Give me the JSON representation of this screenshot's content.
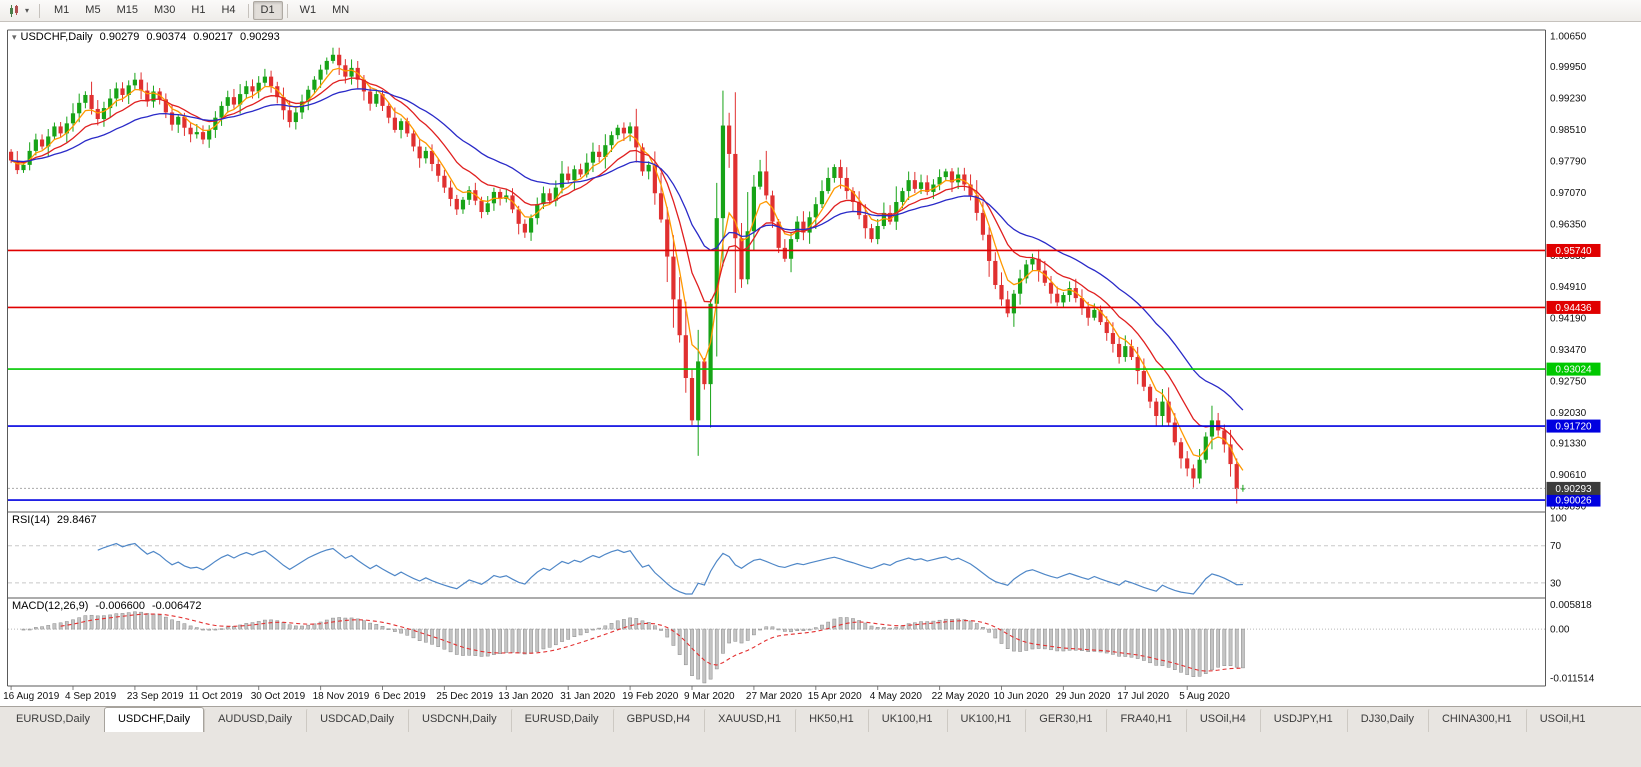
{
  "toolbar": {
    "timeframes": [
      "M1",
      "M5",
      "M15",
      "M30",
      "H1",
      "H4",
      "D1",
      "W1",
      "MN"
    ],
    "active_timeframe": "D1",
    "chart_menu_icon": "candlestick-chart-menu"
  },
  "chart": {
    "title": {
      "symbol": "USDCHF,Daily",
      "open": "0.90279",
      "high": "0.90374",
      "low": "0.90217",
      "close": "0.90293"
    }
  },
  "chart_data": {
    "type": "candlestick",
    "symbol": "USDCHF",
    "timeframe": "Daily",
    "title": "USDCHF,Daily 0.90279 0.90374 0.90217 0.90293",
    "x_labels": [
      "16 Aug 2019",
      "4 Sep 2019",
      "23 Sep 2019",
      "11 Oct 2019",
      "30 Oct 2019",
      "18 Nov 2019",
      "6 Dec 2019",
      "25 Dec 2019",
      "13 Jan 2020",
      "31 Jan 2020",
      "19 Feb 2020",
      "9 Mar 2020",
      "27 Mar 2020",
      "15 Apr 2020",
      "4 May 2020",
      "22 May 2020",
      "10 Jun 2020",
      "29 Jun 2020",
      "17 Jul 2020",
      "5 Aug 2020"
    ],
    "bars_per_label": 10,
    "first_open": 0.98,
    "closes": [
      0.978,
      0.9758,
      0.977,
      0.9802,
      0.9828,
      0.9812,
      0.9835,
      0.9858,
      0.9842,
      0.9865,
      0.9888,
      0.9912,
      0.993,
      0.9898,
      0.9875,
      0.99,
      0.9922,
      0.9945,
      0.993,
      0.9952,
      0.9965,
      0.994,
      0.9915,
      0.9938,
      0.992,
      0.989,
      0.9862,
      0.988,
      0.9855,
      0.984,
      0.9845,
      0.9828,
      0.985,
      0.9878,
      0.9905,
      0.9925,
      0.9908,
      0.9932,
      0.995,
      0.9938,
      0.9958,
      0.9972,
      0.995,
      0.9925,
      0.9895,
      0.9868,
      0.989,
      0.9915,
      0.9942,
      0.9965,
      0.9988,
      1.0008,
      1.0022,
      0.9998,
      0.9972,
      0.9992,
      0.9965,
      0.9938,
      0.991,
      0.9932,
      0.9905,
      0.9878,
      0.985,
      0.987,
      0.9842,
      0.9812,
      0.9785,
      0.9802,
      0.9772,
      0.9745,
      0.9718,
      0.9692,
      0.9668,
      0.969,
      0.9712,
      0.9688,
      0.9662,
      0.9682,
      0.9708,
      0.9692,
      0.97,
      0.9668,
      0.9635,
      0.9615,
      0.9648,
      0.968,
      0.9705,
      0.9688,
      0.9718,
      0.975,
      0.9735,
      0.976,
      0.9748,
      0.9775,
      0.98,
      0.9788,
      0.9815,
      0.9838,
      0.9855,
      0.9842,
      0.9858,
      0.981,
      0.9755,
      0.977,
      0.9705,
      0.9645,
      0.956,
      0.9462,
      0.938,
      0.9282,
      0.9185,
      0.932,
      0.9268,
      0.9452,
      0.9648,
      0.986,
      0.9795,
      0.9602,
      0.9508,
      0.9618,
      0.972,
      0.9755,
      0.97,
      0.964,
      0.958,
      0.9555,
      0.96,
      0.964,
      0.9615,
      0.965,
      0.968,
      0.971,
      0.974,
      0.9765,
      0.974,
      0.971,
      0.9685,
      0.9655,
      0.9625,
      0.96,
      0.963,
      0.966,
      0.964,
      0.9685,
      0.971,
      0.9735,
      0.9715,
      0.973,
      0.9708,
      0.9725,
      0.9742,
      0.9755,
      0.973,
      0.9748,
      0.9725,
      0.97,
      0.966,
      0.961,
      0.955,
      0.9495,
      0.9462,
      0.943,
      0.9475,
      0.951,
      0.9542,
      0.9555,
      0.9528,
      0.95,
      0.9475,
      0.9455,
      0.9472,
      0.9488,
      0.9465,
      0.9442,
      0.942,
      0.9438,
      0.941,
      0.9385,
      0.936,
      0.933,
      0.9355,
      0.933,
      0.9298,
      0.9262,
      0.9228,
      0.9195,
      0.9228,
      0.918,
      0.9135,
      0.9098,
      0.9075,
      0.9052,
      0.9095,
      0.9148,
      0.9185,
      0.9162,
      0.913,
      0.9085,
      0.90279,
      0.90293
    ],
    "last_ohlc": [
      0.90279,
      0.90374,
      0.90217,
      0.90293
    ],
    "y_axis": {
      "min": 0.8989,
      "max": 1.0065,
      "ticks": [
        {
          "t": "1.00650",
          "v": 1.0065
        },
        {
          "t": "0.99950",
          "v": 0.9995
        },
        {
          "t": "0.99230",
          "v": 0.9923
        },
        {
          "t": "0.98510",
          "v": 0.9851
        },
        {
          "t": "0.97790",
          "v": 0.9779
        },
        {
          "t": "0.97070",
          "v": 0.9707
        },
        {
          "t": "0.96350",
          "v": 0.9635
        },
        {
          "t": "0.95630",
          "v": 0.9563
        },
        {
          "t": "0.94910",
          "v": 0.9491
        },
        {
          "t": "0.94190",
          "v": 0.9419
        },
        {
          "t": "0.93470",
          "v": 0.9347
        },
        {
          "t": "0.92750",
          "v": 0.9275
        },
        {
          "t": "0.92030",
          "v": 0.9203
        },
        {
          "t": "0.91330",
          "v": 0.9133
        },
        {
          "t": "0.90610",
          "v": 0.9061
        },
        {
          "t": "0.89890",
          "v": 0.8989
        }
      ]
    },
    "h_lines": [
      {
        "t": "0.95740",
        "v": 0.9574,
        "color": "#E00000"
      },
      {
        "t": "0.94436",
        "v": 0.94436,
        "color": "#E00000"
      },
      {
        "t": "0.93024",
        "v": 0.93024,
        "color": "#00C800"
      },
      {
        "t": "0.91720",
        "v": 0.9172,
        "color": "#0000E0"
      },
      {
        "t": "0.90026",
        "v": 0.90026,
        "color": "#0000E0"
      }
    ],
    "current_price": {
      "t": "0.90293",
      "v": 0.90293,
      "badge_color": "#3C3C3C"
    },
    "moving_averages": [
      {
        "period": 5,
        "color": "#FF9900"
      },
      {
        "period": 12,
        "color": "#E02020"
      },
      {
        "period": 26,
        "color": "#2A2AC8"
      }
    ],
    "colors": {
      "up": "#17A317",
      "down": "#E03030",
      "background": "#FFFFFF",
      "border": "#5A5A5A"
    },
    "legend_position": "none",
    "grid": false
  },
  "rsi": {
    "name": "RSI(14)",
    "value": "29.8467",
    "period": 14,
    "levels": [
      70,
      30
    ],
    "axis_labels": [
      {
        "t": "100",
        "v": 100
      },
      {
        "t": "70",
        "v": 70
      },
      {
        "t": "30",
        "v": 30
      }
    ],
    "line_color": "#4F87C7"
  },
  "macd": {
    "name": "MACD(12,26,9)",
    "value1": "-0.006600",
    "value2": "-0.006472",
    "fast": 12,
    "slow": 26,
    "signal": 9,
    "axis_labels": [
      {
        "t": "0.005818",
        "v": 0.005818
      },
      {
        "t": "0.00",
        "v": 0
      },
      {
        "t": "-0.011514",
        "v": -0.011514
      }
    ],
    "histogram_color": "#C4C4C4",
    "histogram_stroke": "#8A8A8A",
    "signal_color": "#E33030"
  },
  "tabs": {
    "items": [
      "EURUSD,Daily",
      "USDCHF,Daily",
      "AUDUSD,Daily",
      "USDCAD,Daily",
      "USDCNH,Daily",
      "EURUSD,Daily",
      "GBPUSD,H4",
      "XAUUSD,H1",
      "HK50,H1",
      "UK100,H1",
      "UK100,H1",
      "GER30,H1",
      "FRA40,H1",
      "USOil,H4",
      "USDJPY,H1",
      "DJ30,Daily",
      "CHINA300,H1",
      "USOil,H1"
    ],
    "active_index": 1
  }
}
